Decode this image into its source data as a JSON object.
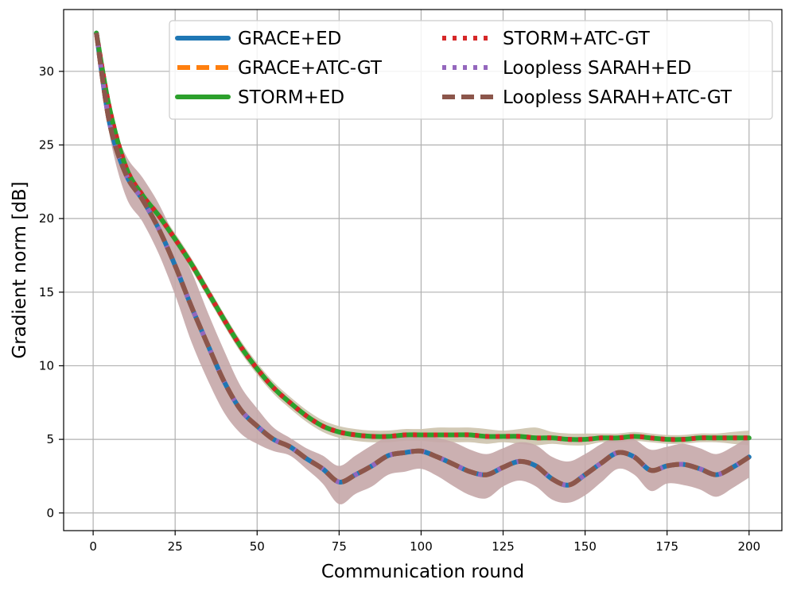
{
  "chart_data": {
    "type": "line",
    "title": "",
    "xlabel": "Communication round",
    "ylabel": "Gradient norm [dB]",
    "xlim": [
      -9,
      210
    ],
    "ylim": [
      -1.2,
      34.2
    ],
    "xticks": [
      0,
      25,
      50,
      75,
      100,
      125,
      150,
      175,
      200
    ],
    "yticks": [
      0,
      5,
      10,
      15,
      20,
      25,
      30
    ],
    "grid": true,
    "legend_position": "top-right",
    "legend_columns": 2,
    "colors": {
      "blue": "#1f77b4",
      "orange": "#ff7f0e",
      "green": "#2ca02c",
      "red": "#d62728",
      "purple": "#9467bd",
      "brown": "#8c564b",
      "band_green": "#cdc3ad",
      "band_brown": "#c5a7a9"
    },
    "series": [
      {
        "name": "GRACE+ED",
        "group": "A",
        "style": "solid",
        "color": "#1f77b4",
        "x": [
          1,
          5,
          10,
          15,
          20,
          25,
          30,
          35,
          40,
          45,
          50,
          55,
          60,
          65,
          70,
          75,
          80,
          85,
          90,
          95,
          100,
          105,
          110,
          115,
          120,
          125,
          130,
          135,
          140,
          145,
          150,
          155,
          160,
          165,
          170,
          175,
          180,
          185,
          190,
          195,
          200
        ],
        "y": [
          32.6,
          26.5,
          23.0,
          21.3,
          19.3,
          16.8,
          14.0,
          11.4,
          8.9,
          7.0,
          5.9,
          5.0,
          4.5,
          3.7,
          3.0,
          2.1,
          2.6,
          3.2,
          3.9,
          4.1,
          4.2,
          3.8,
          3.3,
          2.8,
          2.6,
          3.1,
          3.5,
          3.2,
          2.3,
          1.9,
          2.6,
          3.4,
          4.1,
          3.8,
          2.9,
          3.2,
          3.3,
          3.0,
          2.6,
          3.1,
          3.8
        ]
      },
      {
        "name": "GRACE+ATC-GT",
        "group": "A",
        "style": "dashed",
        "color": "#ff7f0e",
        "x": [
          1,
          5,
          10,
          15,
          20,
          25,
          30,
          35,
          40,
          45,
          50,
          55,
          60,
          65,
          70,
          75,
          80,
          85,
          90,
          95,
          100,
          105,
          110,
          115,
          120,
          125,
          130,
          135,
          140,
          145,
          150,
          155,
          160,
          165,
          170,
          175,
          180,
          185,
          190,
          195,
          200
        ],
        "y": [
          32.6,
          26.5,
          23.0,
          21.3,
          19.3,
          16.8,
          14.0,
          11.4,
          8.9,
          7.0,
          5.9,
          5.0,
          4.5,
          3.7,
          3.0,
          2.1,
          2.6,
          3.2,
          3.9,
          4.1,
          4.2,
          3.8,
          3.3,
          2.8,
          2.6,
          3.1,
          3.5,
          3.2,
          2.3,
          1.9,
          2.6,
          3.4,
          4.1,
          3.8,
          2.9,
          3.2,
          3.3,
          3.0,
          2.6,
          3.1,
          3.8
        ]
      },
      {
        "name": "STORM+ED",
        "group": "B",
        "style": "solid",
        "color": "#2ca02c",
        "x": [
          1,
          5,
          10,
          15,
          20,
          25,
          30,
          35,
          40,
          45,
          50,
          55,
          60,
          65,
          70,
          75,
          80,
          85,
          90,
          95,
          100,
          105,
          110,
          115,
          120,
          125,
          130,
          135,
          140,
          145,
          150,
          155,
          160,
          165,
          170,
          175,
          180,
          185,
          190,
          195,
          200
        ],
        "y": [
          32.6,
          27.5,
          23.5,
          21.6,
          20.2,
          18.6,
          16.9,
          15.0,
          13.1,
          11.3,
          9.8,
          8.5,
          7.5,
          6.6,
          5.9,
          5.5,
          5.3,
          5.2,
          5.2,
          5.3,
          5.3,
          5.3,
          5.3,
          5.3,
          5.2,
          5.2,
          5.2,
          5.1,
          5.1,
          5.0,
          5.0,
          5.1,
          5.1,
          5.2,
          5.1,
          5.0,
          5.0,
          5.1,
          5.1,
          5.1,
          5.1
        ]
      },
      {
        "name": "STORM+ATC-GT",
        "group": "B",
        "style": "dotted",
        "color": "#d62728",
        "x": [
          1,
          5,
          10,
          15,
          20,
          25,
          30,
          35,
          40,
          45,
          50,
          55,
          60,
          65,
          70,
          75,
          80,
          85,
          90,
          95,
          100,
          105,
          110,
          115,
          120,
          125,
          130,
          135,
          140,
          145,
          150,
          155,
          160,
          165,
          170,
          175,
          180,
          185,
          190,
          195,
          200
        ],
        "y": [
          32.6,
          27.5,
          23.5,
          21.6,
          20.2,
          18.6,
          16.9,
          15.0,
          13.1,
          11.3,
          9.8,
          8.5,
          7.5,
          6.6,
          5.9,
          5.5,
          5.3,
          5.2,
          5.2,
          5.3,
          5.3,
          5.3,
          5.3,
          5.3,
          5.2,
          5.2,
          5.2,
          5.1,
          5.1,
          5.0,
          5.0,
          5.1,
          5.1,
          5.2,
          5.1,
          5.0,
          5.0,
          5.1,
          5.1,
          5.1,
          5.1
        ]
      },
      {
        "name": "Loopless SARAH+ED",
        "group": "A",
        "style": "dotted",
        "color": "#9467bd",
        "x": [
          1,
          5,
          10,
          15,
          20,
          25,
          30,
          35,
          40,
          45,
          50,
          55,
          60,
          65,
          70,
          75,
          80,
          85,
          90,
          95,
          100,
          105,
          110,
          115,
          120,
          125,
          130,
          135,
          140,
          145,
          150,
          155,
          160,
          165,
          170,
          175,
          180,
          185,
          190,
          195,
          200
        ],
        "y": [
          32.6,
          26.5,
          23.0,
          21.3,
          19.3,
          16.8,
          14.0,
          11.4,
          8.9,
          7.0,
          5.9,
          5.0,
          4.5,
          3.7,
          3.0,
          2.1,
          2.6,
          3.2,
          3.9,
          4.1,
          4.2,
          3.8,
          3.3,
          2.8,
          2.6,
          3.1,
          3.5,
          3.2,
          2.3,
          1.9,
          2.6,
          3.4,
          4.1,
          3.8,
          2.9,
          3.2,
          3.3,
          3.0,
          2.6,
          3.1,
          3.8
        ]
      },
      {
        "name": "Loopless SARAH+ATC-GT",
        "group": "A",
        "style": "dashed",
        "color": "#8c564b",
        "x": [
          1,
          5,
          10,
          15,
          20,
          25,
          30,
          35,
          40,
          45,
          50,
          55,
          60,
          65,
          70,
          75,
          80,
          85,
          90,
          95,
          100,
          105,
          110,
          115,
          120,
          125,
          130,
          135,
          140,
          145,
          150,
          155,
          160,
          165,
          170,
          175,
          180,
          185,
          190,
          195,
          200
        ],
        "y": [
          32.6,
          26.5,
          23.0,
          21.3,
          19.3,
          16.8,
          14.0,
          11.4,
          8.9,
          7.0,
          5.9,
          5.0,
          4.5,
          3.7,
          3.0,
          2.1,
          2.6,
          3.2,
          3.9,
          4.1,
          4.2,
          3.8,
          3.3,
          2.8,
          2.6,
          3.1,
          3.5,
          3.2,
          2.3,
          1.9,
          2.6,
          3.4,
          4.1,
          3.8,
          2.9,
          3.2,
          3.3,
          3.0,
          2.6,
          3.1,
          3.8
        ]
      }
    ],
    "bands": [
      {
        "group": "B",
        "color": "#cdc3ad",
        "x": [
          1,
          5,
          10,
          15,
          20,
          25,
          30,
          35,
          40,
          45,
          50,
          55,
          60,
          65,
          70,
          75,
          80,
          85,
          90,
          95,
          100,
          105,
          110,
          115,
          120,
          125,
          130,
          135,
          140,
          145,
          150,
          155,
          160,
          165,
          170,
          175,
          180,
          185,
          190,
          195,
          200
        ],
        "upper": [
          32.8,
          27.8,
          23.9,
          22.0,
          20.6,
          19.0,
          17.3,
          15.4,
          13.5,
          11.7,
          10.2,
          8.9,
          7.9,
          7.0,
          6.3,
          5.9,
          5.7,
          5.6,
          5.6,
          5.7,
          5.7,
          5.8,
          5.8,
          5.8,
          5.7,
          5.6,
          5.7,
          5.8,
          5.5,
          5.4,
          5.4,
          5.4,
          5.4,
          5.5,
          5.4,
          5.3,
          5.3,
          5.4,
          5.4,
          5.5,
          5.6
        ],
        "lower": [
          32.4,
          27.2,
          23.1,
          21.2,
          19.8,
          18.2,
          16.5,
          14.6,
          12.7,
          10.9,
          9.4,
          8.1,
          7.1,
          6.2,
          5.5,
          5.1,
          4.9,
          4.8,
          4.8,
          4.9,
          4.9,
          4.8,
          4.8,
          4.8,
          4.7,
          4.8,
          4.7,
          4.6,
          4.7,
          4.6,
          4.6,
          4.8,
          4.8,
          4.9,
          4.8,
          4.7,
          4.7,
          4.8,
          4.8,
          4.7,
          4.6
        ]
      },
      {
        "group": "A",
        "color": "#c5a7a9",
        "x": [
          1,
          5,
          10,
          15,
          20,
          25,
          30,
          35,
          40,
          45,
          50,
          55,
          60,
          65,
          70,
          75,
          80,
          85,
          90,
          95,
          100,
          105,
          110,
          115,
          120,
          125,
          130,
          135,
          140,
          145,
          150,
          155,
          160,
          165,
          170,
          175,
          180,
          185,
          190,
          195,
          200
        ],
        "upper": [
          32.8,
          27.3,
          24.3,
          22.8,
          21.0,
          18.7,
          16.4,
          13.6,
          11.0,
          8.6,
          7.1,
          5.8,
          5.1,
          4.4,
          3.9,
          3.2,
          3.9,
          4.6,
          5.2,
          5.4,
          5.4,
          5.1,
          4.8,
          4.3,
          4.0,
          4.4,
          4.8,
          4.6,
          3.8,
          3.5,
          4.0,
          4.7,
          5.2,
          5.0,
          4.3,
          4.5,
          4.7,
          4.4,
          4.0,
          4.5,
          5.2
        ],
        "lower": [
          32.4,
          25.7,
          21.5,
          19.8,
          17.6,
          14.8,
          11.6,
          9.0,
          6.8,
          5.4,
          4.7,
          4.2,
          3.9,
          3.0,
          2.0,
          0.6,
          1.3,
          1.8,
          2.6,
          2.8,
          3.0,
          2.5,
          1.8,
          1.2,
          1.0,
          1.8,
          2.2,
          1.8,
          0.9,
          0.7,
          1.2,
          2.1,
          3.0,
          2.6,
          1.5,
          2.0,
          1.9,
          1.6,
          1.1,
          1.7,
          2.4
        ]
      }
    ]
  }
}
